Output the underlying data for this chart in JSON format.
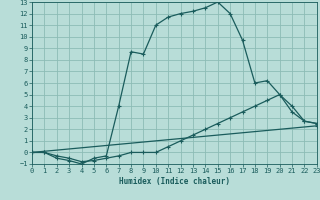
{
  "xlabel": "Humidex (Indice chaleur)",
  "bg_color": "#b8ddd8",
  "grid_color": "#8cbcb6",
  "line_color": "#1a5c5c",
  "xlim": [
    0,
    23
  ],
  "ylim": [
    -1,
    13
  ],
  "xticks": [
    0,
    1,
    2,
    3,
    4,
    5,
    6,
    7,
    8,
    9,
    10,
    11,
    12,
    13,
    14,
    15,
    16,
    17,
    18,
    19,
    20,
    21,
    22,
    23
  ],
  "yticks": [
    -1,
    0,
    1,
    2,
    3,
    4,
    5,
    6,
    7,
    8,
    9,
    10,
    11,
    12,
    13
  ],
  "curve1_x": [
    0,
    1,
    2,
    3,
    4,
    5,
    6,
    7,
    8,
    9,
    10,
    11,
    12,
    13,
    14,
    15,
    16,
    17,
    18,
    19,
    20,
    21,
    22,
    23
  ],
  "curve1_y": [
    0,
    0,
    -0.5,
    -0.7,
    -1.0,
    -0.5,
    -0.3,
    4.0,
    8.7,
    8.5,
    11.0,
    11.7,
    12.0,
    12.2,
    12.5,
    13.0,
    12.0,
    9.7,
    6.0,
    6.2,
    5.0,
    4.0,
    2.7,
    2.5
  ],
  "curve2_x": [
    0,
    1,
    2,
    3,
    4,
    5,
    6,
    7,
    8,
    9,
    10,
    11,
    12,
    13,
    14,
    15,
    16,
    17,
    18,
    19,
    20,
    21,
    22,
    23
  ],
  "curve2_y": [
    0,
    0,
    -0.3,
    -0.5,
    -0.8,
    -0.7,
    -0.5,
    -0.3,
    0,
    0,
    0,
    0.5,
    1.0,
    1.5,
    2.0,
    2.5,
    3.0,
    3.5,
    4.0,
    4.5,
    5.0,
    3.5,
    2.7,
    2.5
  ],
  "curve3_x": [
    0,
    23
  ],
  "curve3_y": [
    0,
    2.3
  ]
}
